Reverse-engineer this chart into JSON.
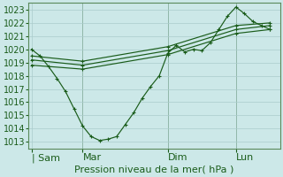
{
  "title": "Pression niveau de la mer( hPa )",
  "bg_color": "#cce8e8",
  "grid_color": "#aacccc",
  "line_color": "#1a5c1a",
  "ylim": [
    1012.5,
    1023.5
  ],
  "yticks": [
    1013,
    1014,
    1015,
    1016,
    1017,
    1018,
    1019,
    1020,
    1021,
    1022,
    1023
  ],
  "day_labels": [
    "| Sam",
    "Mar",
    "Dim",
    "Lun"
  ],
  "day_positions": [
    0,
    36,
    96,
    144
  ],
  "vline_positions": [
    36,
    96,
    144
  ],
  "xlim": [
    -2,
    175
  ],
  "series_main": {
    "x": [
      0,
      6,
      12,
      18,
      24,
      30,
      36,
      42,
      48,
      54,
      60,
      66,
      72,
      78,
      84,
      90,
      96,
      102,
      108,
      114,
      120,
      126,
      132,
      138,
      144,
      150,
      156,
      162,
      168
    ],
    "y": [
      1020.0,
      1019.5,
      1018.7,
      1017.8,
      1016.8,
      1015.5,
      1014.2,
      1013.4,
      1013.1,
      1013.2,
      1013.4,
      1014.3,
      1015.2,
      1016.3,
      1017.2,
      1018.0,
      1019.7,
      1020.3,
      1019.8,
      1020.0,
      1019.9,
      1020.5,
      1021.5,
      1022.5,
      1023.2,
      1022.7,
      1022.1,
      1021.8,
      1021.5
    ]
  },
  "series_forecast": [
    {
      "x": [
        0,
        36,
        96,
        144,
        168
      ],
      "y": [
        1019.2,
        1018.8,
        1019.9,
        1021.5,
        1021.8
      ]
    },
    {
      "x": [
        0,
        36,
        96,
        144,
        168
      ],
      "y": [
        1019.5,
        1019.1,
        1020.2,
        1021.8,
        1022.0
      ]
    },
    {
      "x": [
        0,
        36,
        96,
        144,
        168
      ],
      "y": [
        1018.8,
        1018.5,
        1019.6,
        1021.2,
        1021.5
      ]
    }
  ],
  "xlabel_fontsize": 8,
  "ylabel_fontsize": 7,
  "label_color": "#1a5c1a",
  "tick_color": "#1a5c1a",
  "spine_color": "#5a8a5a"
}
